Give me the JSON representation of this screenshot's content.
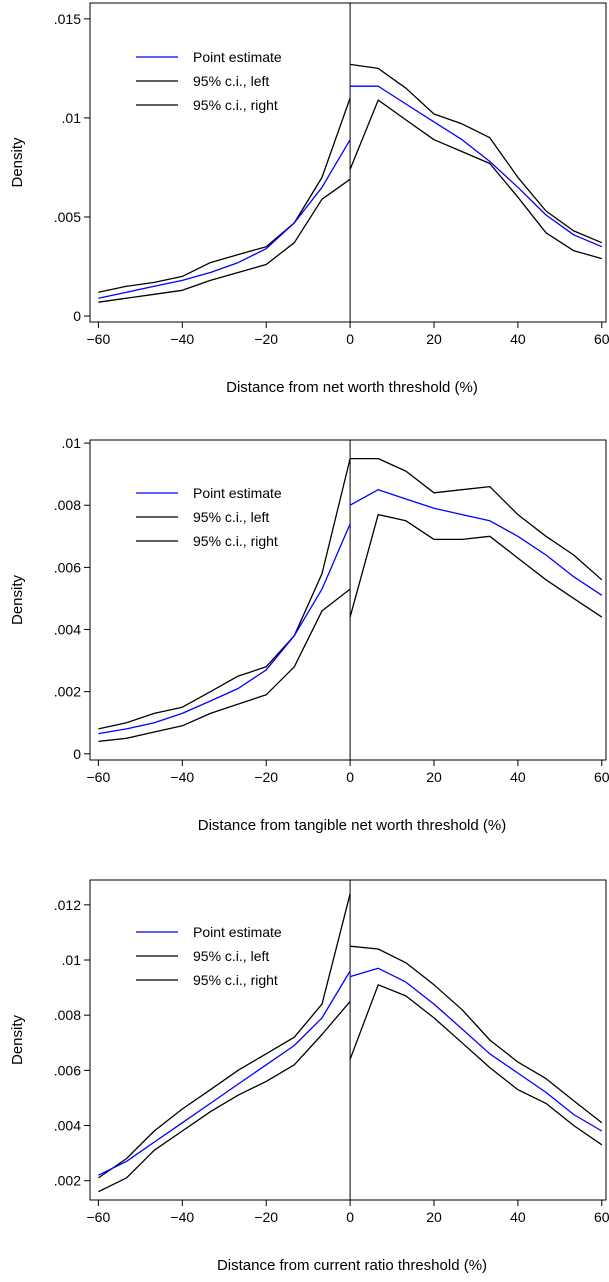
{
  "chart_data": [
    {
      "type": "line",
      "xlabel": "Distance from net worth threshold (%)",
      "ylabel": "Density",
      "xlim": [
        -62,
        61
      ],
      "ylim": [
        -0.0003,
        0.0158
      ],
      "xticks": [
        -60,
        -40,
        -20,
        0,
        20,
        40,
        60
      ],
      "xtick_labels": [
        "−60",
        "−40",
        "−20",
        "0",
        "20",
        "40",
        "60"
      ],
      "yticks": [
        0,
        0.005,
        0.01,
        0.015
      ],
      "ytick_labels": [
        "0",
        ".005",
        ".01",
        ".015"
      ],
      "threshold_x": 0,
      "legend_placement": "top-left",
      "series": [
        {
          "name": "Point estimate",
          "color": "#0000ff",
          "x": [
            -60,
            -53.3,
            -46.7,
            -40,
            -33.3,
            -26.7,
            -20,
            -13.3,
            -6.7,
            0,
            null,
            0,
            6.7,
            13.3,
            20,
            26.7,
            33.3,
            40,
            46.7,
            53.3,
            60
          ],
          "y": [
            0.0009,
            0.0012,
            0.0015,
            0.0018,
            0.0022,
            0.0027,
            0.0034,
            0.0047,
            0.0065,
            0.0089,
            null,
            0.0116,
            0.0116,
            0.0107,
            0.0098,
            0.0089,
            0.0078,
            0.0065,
            0.0051,
            0.0041,
            0.0035
          ]
        },
        {
          "name": "95% c.i., left",
          "color": "#000000",
          "x": [
            -60,
            -53.3,
            -46.7,
            -40,
            -33.3,
            -26.7,
            -20,
            -13.3,
            -6.7,
            0,
            null,
            0,
            6.7,
            13.3,
            20,
            26.7,
            33.3,
            40,
            46.7,
            53.3,
            60
          ],
          "y": [
            0.0012,
            0.0015,
            0.0017,
            0.002,
            0.0027,
            0.0031,
            0.0035,
            0.0047,
            0.007,
            0.011,
            null,
            0.0127,
            0.0125,
            0.0115,
            0.0102,
            0.0097,
            0.009,
            0.007,
            0.0053,
            0.0043,
            0.0037
          ]
        },
        {
          "name": "95% c.i., right",
          "color": "#000000",
          "x": [
            -60,
            -53.3,
            -46.7,
            -40,
            -33.3,
            -26.7,
            -20,
            -13.3,
            -6.7,
            0,
            null,
            0,
            6.7,
            13.3,
            20,
            26.7,
            33.3,
            40,
            46.7,
            53.3,
            60
          ],
          "y": [
            0.0007,
            0.0009,
            0.0011,
            0.0013,
            0.0018,
            0.0022,
            0.0026,
            0.0037,
            0.0059,
            0.0069,
            null,
            0.0074,
            0.0109,
            0.0099,
            0.0089,
            0.0083,
            0.0077,
            0.006,
            0.0042,
            0.0033,
            0.0029
          ]
        }
      ]
    },
    {
      "type": "line",
      "xlabel": "Distance from tangible net worth threshold (%)",
      "ylabel": "Density",
      "xlim": [
        -62,
        61
      ],
      "ylim": [
        -0.0002,
        0.0101
      ],
      "xticks": [
        -60,
        -40,
        -20,
        0,
        20,
        40,
        60
      ],
      "xtick_labels": [
        "−60",
        "−40",
        "−20",
        "0",
        "20",
        "40",
        "60"
      ],
      "yticks": [
        0,
        0.002,
        0.004,
        0.006,
        0.008,
        0.01
      ],
      "ytick_labels": [
        "0",
        ".002",
        ".004",
        ".006",
        ".008",
        ".01"
      ],
      "threshold_x": 0,
      "legend_placement": "top-left",
      "series": [
        {
          "name": "Point estimate",
          "color": "#0000ff",
          "x": [
            -60,
            -53.3,
            -46.7,
            -40,
            -33.3,
            -26.7,
            -20,
            -13.3,
            -6.7,
            0,
            null,
            0,
            6.7,
            13.3,
            20,
            26.7,
            33.3,
            40,
            46.7,
            53.3,
            60
          ],
          "y": [
            0.00065,
            0.0008,
            0.001,
            0.0013,
            0.0017,
            0.0021,
            0.0027,
            0.0038,
            0.0053,
            0.0074,
            null,
            0.008,
            0.0085,
            0.0082,
            0.0079,
            0.0077,
            0.0075,
            0.007,
            0.0064,
            0.0057,
            0.0051
          ]
        },
        {
          "name": "95% c.i., left",
          "color": "#000000",
          "x": [
            -60,
            -53.3,
            -46.7,
            -40,
            -33.3,
            -26.7,
            -20,
            -13.3,
            -6.7,
            0,
            null,
            0,
            6.7,
            13.3,
            20,
            26.7,
            33.3,
            40,
            46.7,
            53.3,
            60
          ],
          "y": [
            0.0008,
            0.001,
            0.0013,
            0.0015,
            0.002,
            0.0025,
            0.0028,
            0.0038,
            0.0058,
            0.0095,
            null,
            0.0095,
            0.0095,
            0.0091,
            0.0084,
            0.0085,
            0.0086,
            0.0077,
            0.007,
            0.0064,
            0.0056
          ]
        },
        {
          "name": "95% c.i., right",
          "color": "#000000",
          "x": [
            -60,
            -53.3,
            -46.7,
            -40,
            -33.3,
            -26.7,
            -20,
            -13.3,
            -6.7,
            0,
            null,
            0,
            6.7,
            13.3,
            20,
            26.7,
            33.3,
            40,
            46.7,
            53.3,
            60
          ],
          "y": [
            0.0004,
            0.0005,
            0.0007,
            0.0009,
            0.0013,
            0.0016,
            0.0019,
            0.0028,
            0.0046,
            0.0053,
            null,
            0.0044,
            0.0077,
            0.0075,
            0.0069,
            0.0069,
            0.007,
            0.0063,
            0.0056,
            0.005,
            0.0044
          ]
        }
      ]
    },
    {
      "type": "line",
      "xlabel": "Distance from current ratio threshold (%)",
      "ylabel": "Density",
      "xlim": [
        -62,
        61
      ],
      "ylim": [
        0.0013,
        0.0129
      ],
      "xticks": [
        -60,
        -40,
        -20,
        0,
        20,
        40,
        60
      ],
      "xtick_labels": [
        "−60",
        "−40",
        "−20",
        "0",
        "20",
        "40",
        "60"
      ],
      "yticks": [
        0.002,
        0.004,
        0.006,
        0.008,
        0.01,
        0.012
      ],
      "ytick_labels": [
        ".002",
        ".004",
        ".006",
        ".008",
        ".01",
        ".012"
      ],
      "threshold_x": 0,
      "legend_placement": "top-left",
      "series": [
        {
          "name": "Point estimate",
          "color": "#0000ff",
          "x": [
            -60,
            -53.3,
            -46.7,
            -40,
            -33.3,
            -26.7,
            -20,
            -13.3,
            -6.7,
            0,
            null,
            0,
            6.7,
            13.3,
            20,
            26.7,
            33.3,
            40,
            46.7,
            53.3,
            60
          ],
          "y": [
            0.0022,
            0.0027,
            0.0034,
            0.0041,
            0.0048,
            0.0055,
            0.0062,
            0.0069,
            0.0079,
            0.0096,
            null,
            0.0094,
            0.0097,
            0.0092,
            0.0084,
            0.0075,
            0.0066,
            0.0059,
            0.0052,
            0.0044,
            0.0038
          ]
        },
        {
          "name": "95% c.i., left",
          "color": "#000000",
          "x": [
            -60,
            -53.3,
            -46.7,
            -40,
            -33.3,
            -26.7,
            -20,
            -13.3,
            -6.7,
            0,
            null,
            0,
            6.7,
            13.3,
            20,
            26.7,
            33.3,
            40,
            46.7,
            53.3,
            60
          ],
          "y": [
            0.0021,
            0.0028,
            0.0038,
            0.0046,
            0.0053,
            0.006,
            0.0066,
            0.0072,
            0.0084,
            0.0124,
            null,
            0.0105,
            0.0104,
            0.0099,
            0.0091,
            0.0082,
            0.0071,
            0.0063,
            0.0057,
            0.0049,
            0.0041
          ]
        },
        {
          "name": "95% c.i., right",
          "color": "#000000",
          "x": [
            -60,
            -53.3,
            -46.7,
            -40,
            -33.3,
            -26.7,
            -20,
            -13.3,
            -6.7,
            0,
            null,
            0,
            6.7,
            13.3,
            20,
            26.7,
            33.3,
            40,
            46.7,
            53.3,
            60
          ],
          "y": [
            0.0016,
            0.0021,
            0.0031,
            0.0038,
            0.0045,
            0.0051,
            0.0056,
            0.0062,
            0.0073,
            0.0085,
            null,
            0.0064,
            0.0091,
            0.0087,
            0.0079,
            0.007,
            0.0061,
            0.0053,
            0.0048,
            0.004,
            0.0033
          ]
        }
      ]
    }
  ]
}
